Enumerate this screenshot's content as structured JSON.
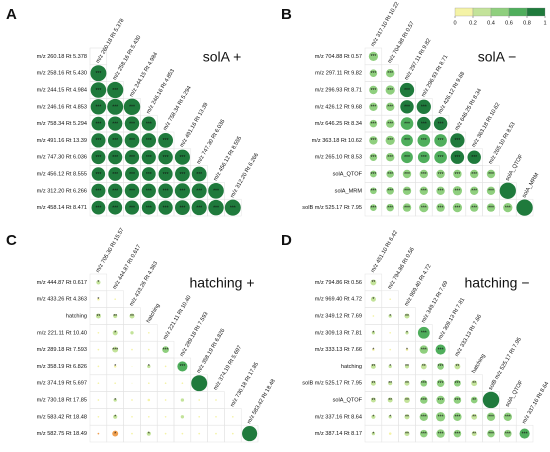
{
  "chart_data": [
    {
      "type": "corrplot",
      "letter": "A",
      "title": "solA +",
      "columns": [
        "m/z 260.18 Rt 5.378",
        "m/z 258.16 Rt 5.430",
        "m/z 244.15 Rt 4.984",
        "m/z 246.16 Rt 4.853",
        "m/z 758.34 Rt 5.294",
        "m/z 491.16 Rt 13.39",
        "m/z 747.30 Rt 6.036",
        "m/z 456.12 Rt 8.555",
        "m/z 312.20 Rt 6.266"
      ],
      "rows": [
        {
          "label": "m/z 260.18 Rt 5.378",
          "values": [],
          "stars": []
        },
        {
          "label": "m/z 258.16 Rt 5.430",
          "values": [
            0.95
          ],
          "stars": [
            "***"
          ]
        },
        {
          "label": "m/z 244.15 Rt 4.984",
          "values": [
            0.93,
            0.96
          ],
          "stars": [
            "***",
            "***"
          ]
        },
        {
          "label": "m/z 246.16 Rt 4.853",
          "values": [
            0.92,
            0.95,
            0.98
          ],
          "stars": [
            "***",
            "***",
            "***"
          ]
        },
        {
          "label": "m/z 758.34 Rt 5.294",
          "values": [
            0.82,
            0.85,
            0.86,
            0.85
          ],
          "stars": [
            "***",
            "***",
            "***",
            "***"
          ]
        },
        {
          "label": "m/z 491.16 Rt 13.39",
          "values": [
            0.85,
            0.86,
            0.87,
            0.86,
            0.88
          ],
          "stars": [
            "***",
            "***",
            "***",
            "***",
            "***"
          ]
        },
        {
          "label": "m/z 747.30 Rt 6.036",
          "values": [
            0.83,
            0.84,
            0.85,
            0.84,
            0.86,
            0.9
          ],
          "stars": [
            "***",
            "***",
            "***",
            "***",
            "***",
            "***"
          ]
        },
        {
          "label": "m/z 456.12 Rt 8.555",
          "values": [
            0.8,
            0.82,
            0.83,
            0.82,
            0.84,
            0.88,
            0.88
          ],
          "stars": [
            "***",
            "***",
            "***",
            "***",
            "***",
            "***",
            "***"
          ]
        },
        {
          "label": "m/z 312.20 Rt 6.266",
          "values": [
            0.84,
            0.85,
            0.86,
            0.85,
            0.87,
            0.9,
            0.89,
            0.93
          ],
          "stars": [
            "***",
            "***",
            "***",
            "***",
            "***",
            "***",
            "***",
            "***"
          ]
        },
        {
          "label": "m/z 458.14 Rt 8.471",
          "values": [
            0.82,
            0.83,
            0.84,
            0.83,
            0.85,
            0.88,
            0.9,
            0.92,
            0.95
          ],
          "stars": [
            "***",
            "***",
            "***",
            "***",
            "***",
            "***",
            "***",
            "***",
            "***"
          ]
        }
      ]
    },
    {
      "type": "corrplot",
      "letter": "B",
      "title": "solA −",
      "legend": {
        "ticks": [
          0,
          0.2,
          0.4,
          0.6,
          0.8,
          1
        ],
        "colors": [
          "#f4f3a6",
          "#c3e39a",
          "#8fcf7e",
          "#4fae5c",
          "#1f7a3c"
        ]
      },
      "columns": [
        "m/z 317.10 Rt 10.22",
        "m/z 704.88 Rt 0.57",
        "m/z 297.11 Rt 9.82",
        "m/z 296.93 Rt 8.71",
        "m/z 426.12 Rt 9.68",
        "m/z 646.25 Rt 8.34",
        "m/z 363.18 Rt 10.62",
        "m/z 265.10 Rt 8.53",
        "solA_QTOF",
        "solA_MRM"
      ],
      "rows": [
        {
          "label": "m/z 704.88 Rt 0.57",
          "values": [
            0.55
          ],
          "stars": [
            "***"
          ]
        },
        {
          "label": "m/z 297.11 Rt 9.82",
          "values": [
            0.45,
            0.5
          ],
          "stars": [
            "***",
            "***"
          ]
        },
        {
          "label": "m/z 296.93 Rt 8.71",
          "values": [
            0.5,
            0.55,
            0.85
          ],
          "stars": [
            "***",
            "***",
            "***"
          ]
        },
        {
          "label": "m/z 426.12 Rt 9.68",
          "values": [
            0.5,
            0.5,
            0.8,
            0.85
          ],
          "stars": [
            "***",
            "***",
            "***",
            "***"
          ]
        },
        {
          "label": "m/z 646.25 Rt 8.34",
          "values": [
            0.45,
            0.5,
            0.75,
            0.8,
            0.8
          ],
          "stars": [
            "***",
            "***",
            "***",
            "***",
            "***"
          ]
        },
        {
          "label": "m/z 363.18 Rt 10.62",
          "values": [
            0.5,
            0.55,
            0.7,
            0.75,
            0.75,
            0.85
          ],
          "stars": [
            "***",
            "***",
            "***",
            "***",
            "***",
            "***"
          ]
        },
        {
          "label": "m/z 265.10 Rt 8.53",
          "values": [
            0.45,
            0.5,
            0.7,
            0.7,
            0.75,
            0.8,
            0.8
          ],
          "stars": [
            "***",
            "***",
            "***",
            "***",
            "***",
            "***",
            "***"
          ]
        },
        {
          "label": "solA_QTOF",
          "values": [
            0.4,
            0.45,
            0.5,
            0.5,
            0.5,
            0.5,
            0.5,
            0.5
          ],
          "stars": [
            "***",
            "***",
            "***",
            "***",
            "***",
            "***",
            "***",
            "***"
          ]
        },
        {
          "label": "solA_MRM",
          "values": [
            0.4,
            0.45,
            0.5,
            0.5,
            0.5,
            0.55,
            0.5,
            0.5,
            0.97
          ],
          "stars": [
            "***",
            "***",
            "***",
            "***",
            "***",
            "***",
            "***",
            "***",
            null
          ]
        },
        {
          "label": "solB m/z 525.17 Rt 7.95",
          "values": [
            0.4,
            0.45,
            0.5,
            0.55,
            0.5,
            0.55,
            0.5,
            0.5,
            0.55,
            0.97
          ],
          "stars": [
            "***",
            "***",
            "***",
            "***",
            "***",
            "***",
            "***",
            "***",
            "***",
            null
          ]
        }
      ]
    },
    {
      "type": "corrplot",
      "letter": "C",
      "title": "hatching +",
      "negative_color": "#f0a050",
      "columns": [
        "m/z 705.30 Rt 15.57",
        "m/z 444.87 Rt 0.617",
        "m/z 433.26 Rt 4.363",
        "hatching",
        "m/z 221.11 Rt 10.40",
        "m/z 289.18 Rt 7.593",
        "m/z 358.19 Rt 6.826",
        "m/z 374.19 Rt 5.697",
        "m/z 730.18 Rt 17.85",
        "m/z 583.42 Rt 18.48"
      ],
      "rows": [
        {
          "label": "m/z 444.87 Rt 0.617",
          "values": [
            0.25
          ],
          "stars": [
            "*"
          ]
        },
        {
          "label": "m/z 433.26 Rt 4.363",
          "values": [
            0.15,
            0.1
          ],
          "stars": [
            "*",
            null
          ]
        },
        {
          "label": "hatching",
          "values": [
            0.3,
            0.25,
            0.3
          ],
          "stars": [
            "**",
            "**",
            "**"
          ]
        },
        {
          "label": "m/z 221.11 Rt 10.40",
          "values": [
            0.1,
            0.3,
            0.2,
            0.1
          ],
          "stars": [
            null,
            "*",
            null,
            null
          ]
        },
        {
          "label": "m/z 289.18 Rt 7.593",
          "values": [
            0.1,
            0.35,
            0.1,
            0.1,
            0.4
          ],
          "stars": [
            null,
            "***",
            null,
            null,
            "***"
          ]
        },
        {
          "label": "m/z 358.19 Rt 6.826",
          "values": [
            0.1,
            0.15,
            0.05,
            0.2,
            0.1,
            0.6
          ],
          "stars": [
            null,
            "*",
            null,
            "*",
            null,
            "***"
          ]
        },
        {
          "label": "m/z 374.19 Rt 5.697",
          "values": [
            0.1,
            0.1,
            0.05,
            0.1,
            0.1,
            0.1,
            0.95
          ],
          "stars": [
            null,
            null,
            null,
            null,
            null,
            null,
            null
          ]
        },
        {
          "label": "m/z 730.18 Rt 17.85",
          "values": [
            0.1,
            0.2,
            0.1,
            0.15,
            0.1,
            0.2,
            0.1,
            0.1
          ],
          "stars": [
            null,
            "*",
            null,
            null,
            null,
            null,
            null,
            null
          ]
        },
        {
          "label": "m/z 583.42 Rt 18.48",
          "values": [
            0.1,
            0.25,
            0.1,
            0.1,
            0.1,
            0.2,
            0.1,
            0.1,
            0.1
          ],
          "stars": [
            null,
            "*",
            null,
            null,
            null,
            null,
            null,
            null,
            null
          ]
        },
        {
          "label": "m/z 582.75 Rt 18.49",
          "values": [
            -0.1,
            -0.35,
            0.1,
            0.25,
            0.1,
            0.1,
            0.1,
            0.1,
            0.1,
            0.9
          ],
          "stars": [
            null,
            "*",
            null,
            "*",
            null,
            null,
            null,
            null,
            null,
            null
          ]
        }
      ]
    },
    {
      "type": "corrplot",
      "letter": "D",
      "title": "hatching −",
      "columns": [
        "m/z 451.10 Rt 6.42",
        "m/z 794.86 Rt 0.56",
        "m/z 969.40 Rt 4.72",
        "m/z 349.12 Rt 7.69",
        "m/z 309.13 Rt 7.81",
        "m/z 333.13 Rt 7.66",
        "hatching",
        "solB m/z 525.17 Rt 7.95",
        "solA_QTOF",
        "m/z 337.16 Rt 8.64"
      ],
      "rows": [
        {
          "label": "m/z 794.86 Rt 0.56",
          "values": [
            0.35
          ],
          "stars": [
            "**"
          ]
        },
        {
          "label": "m/z 969.40 Rt 4.72",
          "values": [
            0.3,
            0.1
          ],
          "stars": [
            "*",
            null
          ]
        },
        {
          "label": "m/z 349.12 Rt 7.69",
          "values": [
            0.1,
            0.2,
            0.3
          ],
          "stars": [
            null,
            "*",
            "**"
          ]
        },
        {
          "label": "m/z 309.13 Rt 7.81",
          "values": [
            0.2,
            0.1,
            0.2,
            0.7
          ],
          "stars": [
            "*",
            null,
            "*",
            "***"
          ]
        },
        {
          "label": "m/z 333.13 Rt 7.66",
          "values": [
            0.15,
            0.1,
            0.15,
            0.5,
            0.6
          ],
          "stars": [
            "*",
            null,
            "*",
            "***",
            "***"
          ]
        },
        {
          "label": "hatching",
          "values": [
            0.3,
            0.2,
            0.25,
            0.35,
            0.4,
            0.35
          ],
          "stars": [
            "**",
            "*",
            "**",
            "**",
            "***",
            "**"
          ]
        },
        {
          "label": "solB m/z 525.17 Rt 7.95",
          "values": [
            0.3,
            0.25,
            0.3,
            0.4,
            0.45,
            0.4,
            0.35
          ],
          "stars": [
            "**",
            "**",
            "**",
            "***",
            "***",
            "***",
            "**"
          ]
        },
        {
          "label": "solA_QTOF",
          "values": [
            0.3,
            0.3,
            0.35,
            0.45,
            0.5,
            0.45,
            0.4,
            0.98
          ],
          "stars": [
            "**",
            "**",
            "**",
            "***",
            "***",
            "***",
            "**",
            null
          ]
        },
        {
          "label": "m/z 337.16 Rt 8.64",
          "values": [
            0.25,
            0.2,
            0.3,
            0.5,
            0.55,
            0.5,
            0.35,
            0.5,
            0.5
          ],
          "stars": [
            "*",
            "*",
            "**",
            "***",
            "***",
            "***",
            "**",
            "***",
            "***"
          ]
        },
        {
          "label": "m/z 387.14 Rt 8.17",
          "values": [
            0.2,
            0.15,
            0.3,
            0.45,
            0.5,
            0.45,
            0.3,
            0.45,
            0.45,
            0.6
          ],
          "stars": [
            "*",
            null,
            "**",
            "***",
            "***",
            "***",
            "**",
            "***",
            "***",
            "***"
          ]
        }
      ]
    }
  ]
}
